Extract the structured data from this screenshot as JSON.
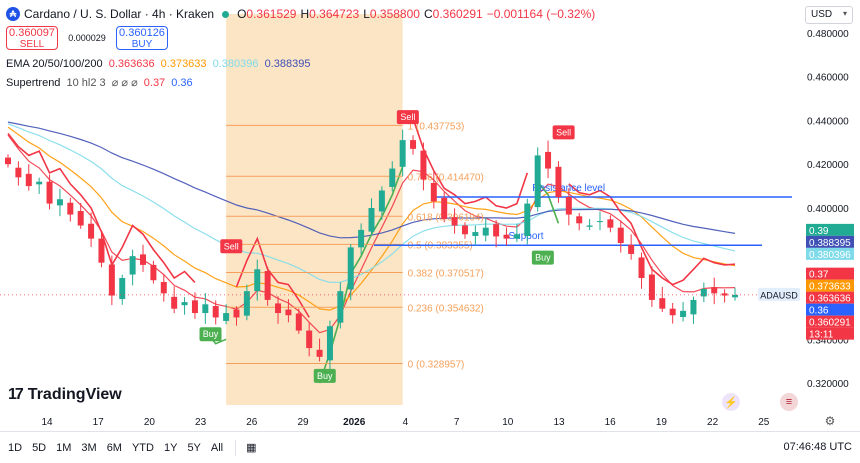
{
  "header": {
    "title": "Cardano / U. S. Dollar · 4h · Kraken",
    "ohlc": [
      {
        "k": "O",
        "v": "0.361529"
      },
      {
        "k": "H",
        "v": "0.364723"
      },
      {
        "k": "L",
        "v": "0.358800"
      },
      {
        "k": "C",
        "v": "0.360291"
      }
    ],
    "change": "−0.001164 (−0.32%)",
    "logo_glyph": "₳"
  },
  "trade": {
    "sell_price": "0.360097",
    "sell_label": "SELL",
    "buy_price": "0.360126",
    "buy_label": "BUY",
    "spread": "0.000029"
  },
  "indicators": {
    "ema_name": "EMA 20/50/100/200",
    "ema_values": [
      "0.363636",
      "0.373633",
      "0.380396",
      "0.388395"
    ],
    "st_name": "Supertrend",
    "st_params": "10 hl2 3",
    "st_icons": "⌀ ⌀ ⌀",
    "st_values": [
      "0.37",
      "0.36"
    ]
  },
  "currency": "USD",
  "brand": "TradingView",
  "colors": {
    "up": "#22ab94",
    "down": "#f23645",
    "ema20": "#f23645",
    "ema50": "#ff9800",
    "ema100": "#7fdbea",
    "ema200": "#3f51b5",
    "supertrend_up": "#4caf50",
    "supertrend_down": "#f23645",
    "fib": "#f5a05a",
    "highlight": "#fbe0bb",
    "resistance": "#2962ff"
  },
  "toolbar": {
    "timeframes": [
      "1D",
      "5D",
      "1M",
      "3M",
      "6M",
      "YTD",
      "1Y",
      "5Y",
      "All"
    ],
    "clock": "07:46:48 UTC"
  },
  "chart_data": {
    "type": "candlestick",
    "symbol": "ADAUSD",
    "interval": "4h",
    "ylim": [
      0.31,
      0.495
    ],
    "y_ticks": [
      "0.480000",
      "0.460000",
      "0.440000",
      "0.420000",
      "0.400000",
      "0.380000",
      "0.360000",
      "0.340000",
      "0.320000"
    ],
    "x_ticks": [
      "14",
      "17",
      "20",
      "23",
      "26",
      "29",
      "2026",
      "4",
      "7",
      "10",
      "13",
      "16",
      "19",
      "22",
      "25"
    ],
    "close_path": [
      [
        0,
        0.42
      ],
      [
        1,
        0.414
      ],
      [
        2,
        0.41
      ],
      [
        3,
        0.412
      ],
      [
        4,
        0.402
      ],
      [
        5,
        0.404
      ],
      [
        6,
        0.397
      ],
      [
        7,
        0.392
      ],
      [
        8,
        0.386
      ],
      [
        9,
        0.375
      ],
      [
        10,
        0.36
      ],
      [
        11,
        0.368
      ],
      [
        12,
        0.378
      ],
      [
        13,
        0.374
      ],
      [
        14,
        0.367
      ],
      [
        15,
        0.361
      ],
      [
        16,
        0.354
      ],
      [
        17,
        0.357
      ],
      [
        18,
        0.352
      ],
      [
        19,
        0.356
      ],
      [
        20,
        0.35
      ],
      [
        21,
        0.352
      ],
      [
        22,
        0.35
      ],
      [
        23,
        0.362
      ],
      [
        24,
        0.372
      ],
      [
        25,
        0.358
      ],
      [
        26,
        0.352
      ],
      [
        27,
        0.351
      ],
      [
        28,
        0.344
      ],
      [
        29,
        0.336
      ],
      [
        30,
        0.332
      ],
      [
        31,
        0.346
      ],
      [
        32,
        0.362
      ],
      [
        33,
        0.382
      ],
      [
        34,
        0.39
      ],
      [
        35,
        0.4
      ],
      [
        36,
        0.408
      ],
      [
        37,
        0.418
      ],
      [
        38,
        0.431
      ],
      [
        39,
        0.427
      ],
      [
        40,
        0.413
      ],
      [
        41,
        0.403
      ],
      [
        42,
        0.395
      ],
      [
        43,
        0.392
      ],
      [
        44,
        0.388
      ],
      [
        45,
        0.389
      ],
      [
        46,
        0.391
      ],
      [
        47,
        0.387
      ],
      [
        48,
        0.386
      ],
      [
        49,
        0.388
      ],
      [
        50,
        0.402
      ],
      [
        51,
        0.424
      ],
      [
        52,
        0.418
      ],
      [
        53,
        0.405
      ],
      [
        54,
        0.397
      ],
      [
        55,
        0.393
      ],
      [
        56,
        0.392
      ],
      [
        57,
        0.394
      ],
      [
        58,
        0.391
      ],
      [
        59,
        0.384
      ],
      [
        60,
        0.379
      ],
      [
        61,
        0.368
      ],
      [
        62,
        0.358
      ],
      [
        63,
        0.354
      ],
      [
        64,
        0.351
      ],
      [
        65,
        0.353
      ],
      [
        66,
        0.358
      ],
      [
        67,
        0.363
      ],
      [
        68,
        0.361
      ],
      [
        69,
        0.36
      ],
      [
        70,
        0.3603
      ]
    ],
    "ema": [
      {
        "name": "EMA 20",
        "value": 0.363636
      },
      {
        "name": "EMA 50",
        "value": 0.373633
      },
      {
        "name": "EMA 100",
        "value": 0.380396
      },
      {
        "name": "EMA 200",
        "value": 0.388395
      }
    ],
    "supertrend": {
      "upper": 0.37,
      "lower": 0.36
    },
    "fibonacci": [
      {
        "ratio": "1",
        "price": "0.437753"
      },
      {
        "ratio": "0.786",
        "price": "0.414470"
      },
      {
        "ratio": "0.618",
        "price": "0.396194"
      },
      {
        "ratio": "0.5",
        "price": "0.383355"
      },
      {
        "ratio": "0.382",
        "price": "0.370517"
      },
      {
        "ratio": "0.236",
        "price": "0.354632"
      },
      {
        "ratio": "0",
        "price": "0.328957"
      }
    ],
    "resistance": {
      "label": "Resistance level",
      "price": 0.405
    },
    "support": {
      "label": "Support",
      "price": 0.383
    },
    "signals": [
      {
        "label": "Sell",
        "type": "sell",
        "x": 21.5,
        "price": 0.372
      },
      {
        "label": "Buy",
        "type": "buy",
        "x": 19.5,
        "price": 0.351
      },
      {
        "label": "Buy",
        "type": "buy",
        "x": 30.5,
        "price": 0.332
      },
      {
        "label": "Sell",
        "type": "sell",
        "x": 38.5,
        "price": 0.431
      },
      {
        "label": "Buy",
        "type": "buy",
        "x": 51.5,
        "price": 0.386
      },
      {
        "label": "Sell",
        "type": "sell",
        "x": 53.5,
        "price": 0.424
      }
    ],
    "price_labels": [
      {
        "text": "0.39",
        "price": 0.39,
        "bg": "#22ab94"
      },
      {
        "text": "0.388395",
        "price": 0.388395,
        "bg": "#3f51b5"
      },
      {
        "text": "0.380396",
        "price": 0.380396,
        "bg": "#7fdbea"
      },
      {
        "text": "0.37",
        "price": 0.37,
        "bg": "#f23645"
      },
      {
        "text": "0.373633",
        "price": 0.373633,
        "bg": "#ff9800"
      },
      {
        "text": "0.363636",
        "price": 0.363636,
        "bg": "#f23645"
      },
      {
        "text": "0.36",
        "price": 0.36,
        "bg": "#2962ff"
      },
      {
        "text": "0.360291",
        "price": 0.360291,
        "bg": "#f23645"
      },
      {
        "text": "13:11",
        "price": 0.3555,
        "bg": "#f23645"
      }
    ],
    "symbol_tag": "ADAUSD"
  }
}
